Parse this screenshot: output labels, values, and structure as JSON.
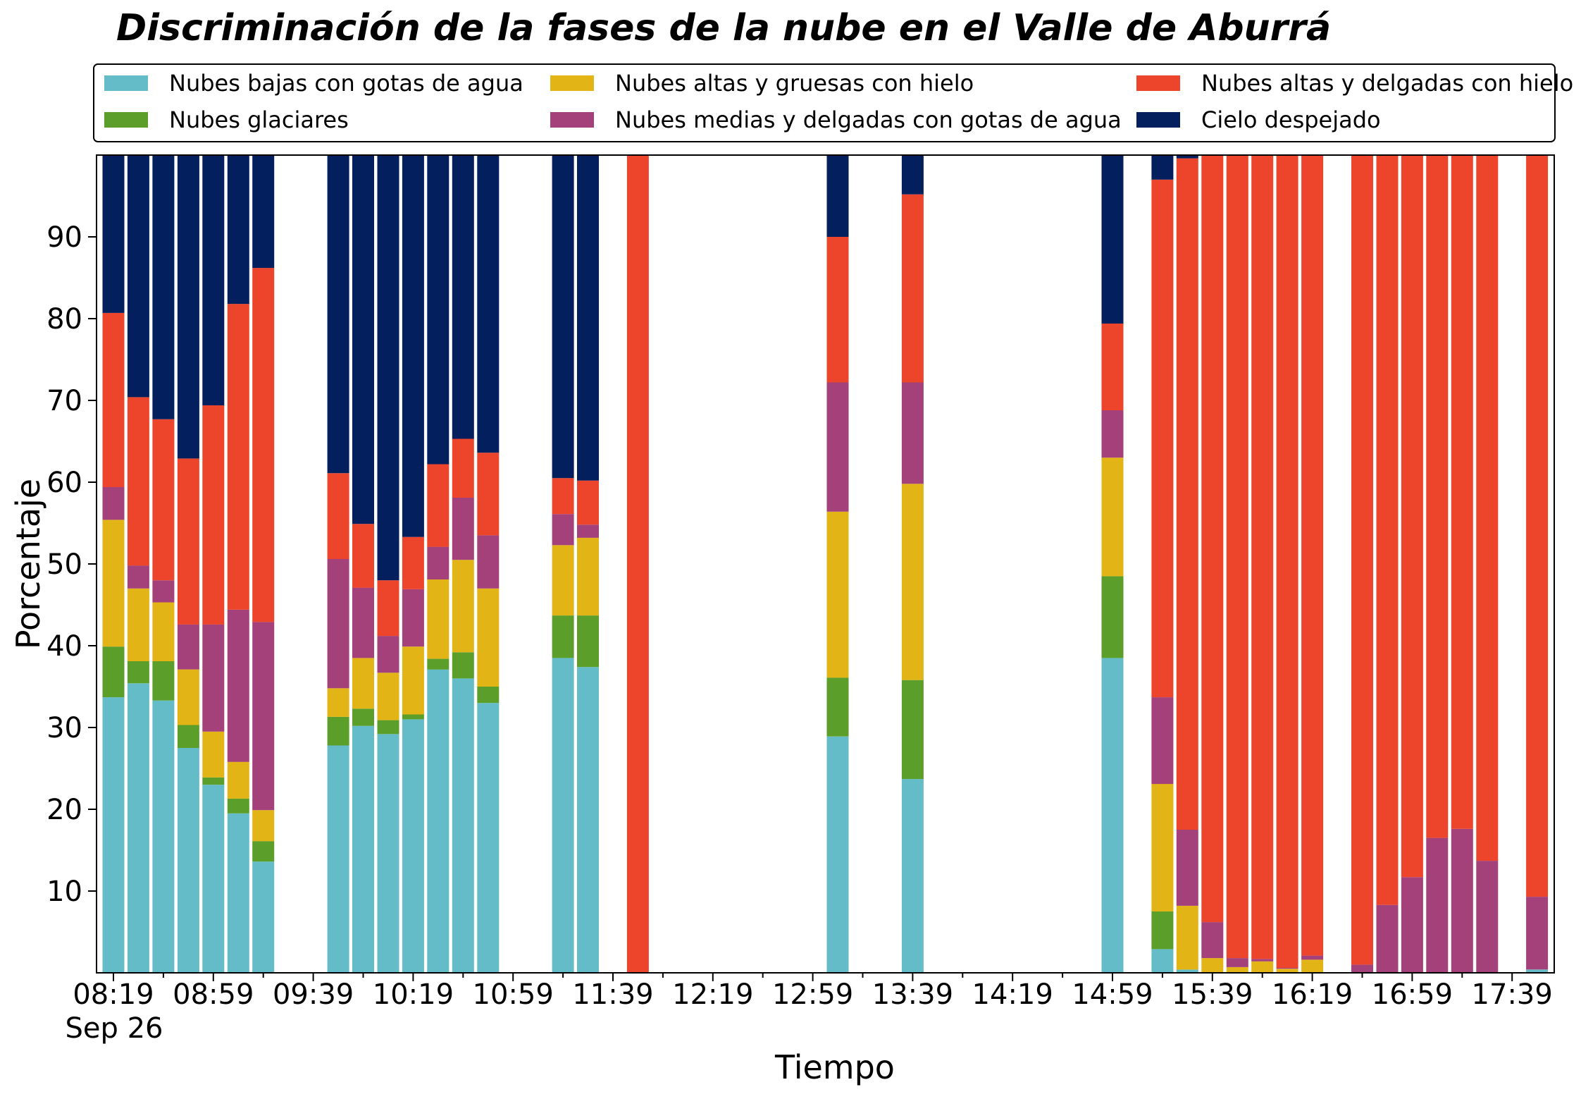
{
  "chart_data": {
    "type": "bar",
    "stacked": true,
    "title": "Discriminación de la fases de la nube en el Valle de Aburrá",
    "xlabel": "Tiempo",
    "ylabel": "Porcentaje",
    "ylim": [
      0,
      100
    ],
    "yticks": [
      10,
      20,
      30,
      40,
      50,
      60,
      70,
      80,
      90
    ],
    "xticks": [
      "08:19",
      "08:59",
      "09:39",
      "10:19",
      "10:59",
      "11:39",
      "12:19",
      "12:59",
      "13:39",
      "14:19",
      "14:59",
      "15:39",
      "16:19",
      "16:59",
      "17:39"
    ],
    "date_label": "Sep 26",
    "x_start": "08:19",
    "bar_interval_minutes": 10,
    "legend_position": "top",
    "grid": false,
    "categories": [
      "08:19",
      "08:29",
      "08:39",
      "08:49",
      "08:59",
      "09:09",
      "09:19",
      "09:49",
      "09:59",
      "10:09",
      "10:19",
      "10:29",
      "10:39",
      "10:49",
      "11:19",
      "11:29",
      "11:49",
      "13:09",
      "13:39",
      "14:59",
      "15:19",
      "15:29",
      "15:39",
      "15:49",
      "15:59",
      "16:09",
      "16:19",
      "16:39",
      "16:49",
      "16:59",
      "17:09",
      "17:19",
      "17:29",
      "17:49"
    ],
    "series": [
      {
        "name": "Nubes bajas con gotas de agua",
        "color": "#64BCC8",
        "values": [
          33.7,
          35.4,
          33.3,
          27.5,
          23.0,
          19.5,
          13.6,
          27.8,
          30.2,
          29.2,
          31.0,
          37.1,
          36.0,
          33.0,
          38.5,
          37.4,
          0,
          28.9,
          23.7,
          38.5,
          2.9,
          0.4,
          0,
          0,
          0,
          0,
          0,
          0,
          0,
          0,
          0,
          0,
          0,
          0.4
        ]
      },
      {
        "name": "Nubes glaciares",
        "color": "#5B9E2A",
        "values": [
          6.2,
          2.7,
          4.8,
          2.8,
          0.9,
          1.8,
          2.5,
          3.5,
          2.1,
          1.7,
          0.6,
          1.3,
          3.2,
          2.0,
          5.2,
          6.3,
          0,
          7.2,
          12.1,
          10.0,
          4.6,
          0,
          0,
          0,
          0,
          0,
          0,
          0,
          0,
          0,
          0,
          0,
          0,
          0
        ]
      },
      {
        "name": "Nubes altas y gruesas con hielo",
        "color": "#E2B416",
        "values": [
          15.5,
          8.9,
          7.2,
          6.8,
          5.6,
          4.5,
          3.8,
          3.5,
          6.2,
          5.8,
          8.3,
          9.7,
          11.3,
          12.0,
          8.6,
          9.5,
          0,
          20.3,
          24.0,
          14.5,
          15.6,
          7.8,
          1.8,
          0.7,
          1.4,
          0.5,
          1.6,
          0,
          0,
          0,
          0,
          0,
          0,
          0
        ]
      },
      {
        "name": "Nubes medias y delgadas con gotas de agua",
        "color": "#A4417A",
        "values": [
          4.0,
          2.8,
          2.7,
          5.5,
          13.1,
          18.6,
          23.0,
          15.8,
          8.6,
          4.5,
          7.0,
          4.0,
          7.6,
          6.5,
          3.8,
          1.6,
          0,
          15.8,
          12.4,
          5.8,
          10.6,
          9.3,
          4.4,
          1.1,
          0.3,
          0.1,
          0.5,
          1.0,
          8.3,
          11.7,
          16.5,
          17.6,
          13.7,
          8.9
        ]
      },
      {
        "name": "Nubes altas y delgadas con hielo",
        "color": "#EC452B",
        "values": [
          21.3,
          20.6,
          19.7,
          20.3,
          26.8,
          37.4,
          43.3,
          10.5,
          7.8,
          6.8,
          6.4,
          10.1,
          7.2,
          10.1,
          4.4,
          5.4,
          100,
          17.8,
          23.0,
          10.6,
          63.3,
          82.1,
          93.8,
          98.2,
          98.3,
          99.4,
          97.9,
          99.0,
          91.7,
          88.3,
          83.5,
          82.4,
          86.3,
          90.7
        ]
      },
      {
        "name": "Cielo despejado",
        "color": "#041F5E",
        "values": [
          19.3,
          29.6,
          32.3,
          37.1,
          30.6,
          18.2,
          13.8,
          38.9,
          45.1,
          52.0,
          46.7,
          37.8,
          34.7,
          36.4,
          39.5,
          39.8,
          0,
          10.0,
          4.8,
          20.6,
          3.0,
          0.4,
          0,
          0,
          0,
          0,
          0,
          0,
          0,
          0,
          0,
          0,
          0,
          0
        ]
      }
    ]
  }
}
